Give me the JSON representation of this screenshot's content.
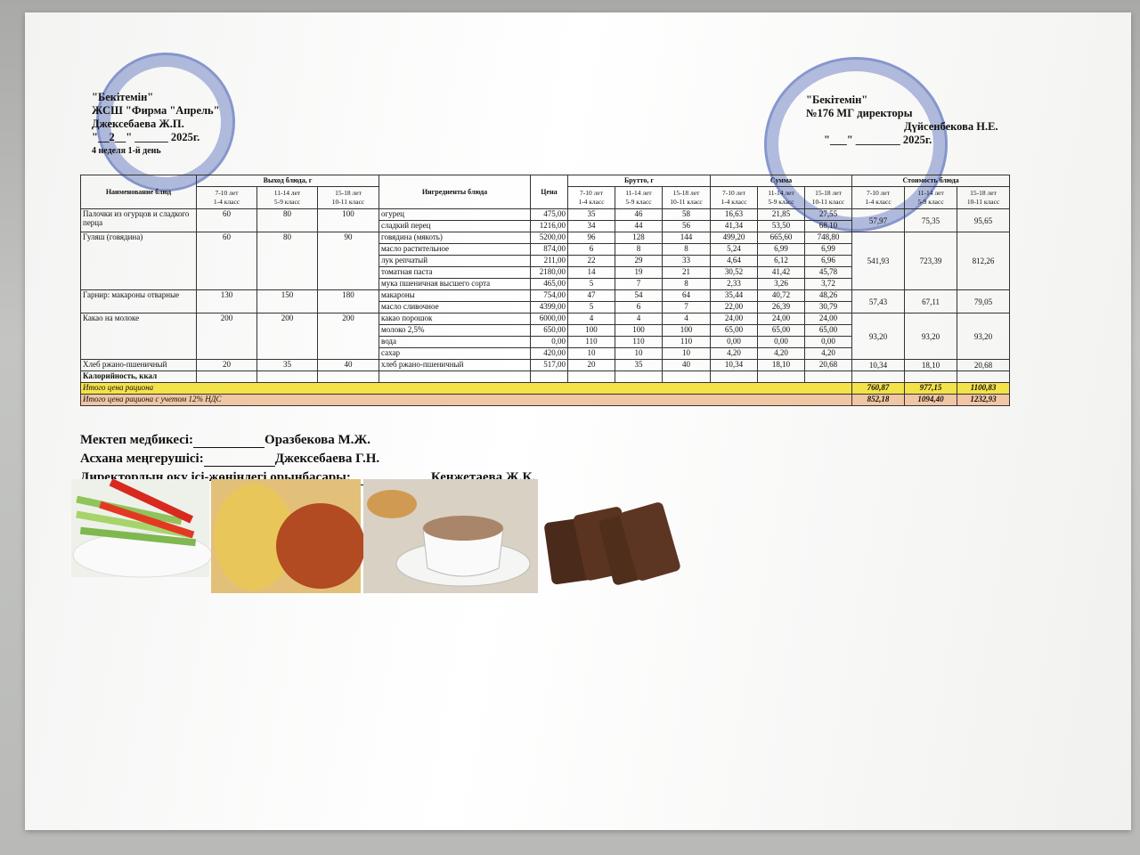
{
  "header_left": {
    "approve": "\"Бекітемін\"",
    "org": "ЖСШ \"Фирма \"Апрель\"",
    "name": "Джексебаева Ж.П.",
    "date": "\"__2__\" ______ 2025г.",
    "day": "4 неделя 1-й день"
  },
  "header_right": {
    "approve": "\"Бекітемін\"",
    "org": "№176 МГ директоры",
    "name": "Дүйсенбекова Н.Е.",
    "date": "\"___\" ________ 2025г."
  },
  "table": {
    "headers": {
      "dish": "Наименование блюд",
      "output": "Выход блюда, г",
      "ingredients": "Ингредиенты блюда",
      "price": "Цена",
      "brutto": "Брутто, г",
      "sum": "Сумма",
      "cost": "Стоимость блюда"
    },
    "age_groups": [
      {
        "age": "7-10 лет",
        "grade": "1-4 класс"
      },
      {
        "age": "11-14 лет",
        "grade": "5-9 класс"
      },
      {
        "age": "15-18 лет",
        "grade": "10-11 класс"
      }
    ],
    "dishes": [
      {
        "name": "Палочки из огурцов и сладкого перца",
        "output": [
          "60",
          "80",
          "100"
        ],
        "cost": [
          "57,97",
          "75,35",
          "95,65"
        ],
        "ingredients": [
          {
            "name": "огурец",
            "price": "475,00",
            "brutto": [
              "35",
              "46",
              "58"
            ],
            "sum": [
              "16,63",
              "21,85",
              "27,55"
            ]
          },
          {
            "name": "сладкий перец",
            "price": "1216,00",
            "brutto": [
              "34",
              "44",
              "56"
            ],
            "sum": [
              "41,34",
              "53,50",
              "68,10"
            ]
          }
        ]
      },
      {
        "name": "Гуляш (говядина)",
        "output": [
          "60",
          "80",
          "90"
        ],
        "cost": [
          "541,93",
          "723,39",
          "812,26"
        ],
        "ingredients": [
          {
            "name": "говядина (мякоть)",
            "price": "5200,00",
            "brutto": [
              "96",
              "128",
              "144"
            ],
            "sum": [
              "499,20",
              "665,60",
              "748,80"
            ]
          },
          {
            "name": "масло растительное",
            "price": "874,00",
            "brutto": [
              "6",
              "8",
              "8"
            ],
            "sum": [
              "5,24",
              "6,99",
              "6,99"
            ]
          },
          {
            "name": "лук репчатый",
            "price": "211,00",
            "brutto": [
              "22",
              "29",
              "33"
            ],
            "sum": [
              "4,64",
              "6,12",
              "6,96"
            ]
          },
          {
            "name": "томатная паста",
            "price": "2180,00",
            "brutto": [
              "14",
              "19",
              "21"
            ],
            "sum": [
              "30,52",
              "41,42",
              "45,78"
            ]
          },
          {
            "name": "мука пшеничная высшего сорта",
            "price": "465,00",
            "brutto": [
              "5",
              "7",
              "8"
            ],
            "sum": [
              "2,33",
              "3,26",
              "3,72"
            ]
          }
        ]
      },
      {
        "name": "Гарнир: макароны отварные",
        "output": [
          "130",
          "150",
          "180"
        ],
        "cost": [
          "57,43",
          "67,11",
          "79,05"
        ],
        "ingredients": [
          {
            "name": "макароны",
            "price": "754,00",
            "brutto": [
              "47",
              "54",
              "64"
            ],
            "sum": [
              "35,44",
              "40,72",
              "48,26"
            ]
          },
          {
            "name": "масло сливочное",
            "price": "4399,00",
            "brutto": [
              "5",
              "6",
              "7"
            ],
            "sum": [
              "22,00",
              "26,39",
              "30,79"
            ]
          }
        ]
      },
      {
        "name": "Какао на молоке",
        "output": [
          "200",
          "200",
          "200"
        ],
        "cost": [
          "93,20",
          "93,20",
          "93,20"
        ],
        "ingredients": [
          {
            "name": "какао порошок",
            "price": "6000,00",
            "brutto": [
              "4",
              "4",
              "4"
            ],
            "sum": [
              "24,00",
              "24,00",
              "24,00"
            ]
          },
          {
            "name": "молоко 2,5%",
            "price": "650,00",
            "brutto": [
              "100",
              "100",
              "100"
            ],
            "sum": [
              "65,00",
              "65,00",
              "65,00"
            ]
          },
          {
            "name": "вода",
            "price": "0,00",
            "brutto": [
              "110",
              "110",
              "110"
            ],
            "sum": [
              "0,00",
              "0,00",
              "0,00"
            ]
          },
          {
            "name": "сахар",
            "price": "420,00",
            "brutto": [
              "10",
              "10",
              "10"
            ],
            "sum": [
              "4,20",
              "4,20",
              "4,20"
            ]
          }
        ]
      },
      {
        "name": "Хлеб ржано-пшеничный",
        "output": [
          "20",
          "35",
          "40"
        ],
        "cost": [
          "10,34",
          "18,10",
          "20,68"
        ],
        "ingredients": [
          {
            "name": "хлеб ржано-пшеничный",
            "price": "517,00",
            "brutto": [
              "20",
              "35",
              "40"
            ],
            "sum": [
              "10,34",
              "18,10",
              "20,68"
            ]
          }
        ]
      }
    ],
    "calories_label": "Калорийность, ккал",
    "total": {
      "label": "Итого цена рациона",
      "values": [
        "760,87",
        "977,15",
        "1100,83"
      ]
    },
    "total_vat": {
      "label": "Итого цена рациона с учетом 12% НДС",
      "values": [
        "852,18",
        "1094,40",
        "1232,93"
      ]
    }
  },
  "signatures": [
    {
      "role": "Мектеп медбикесі:",
      "name": "Оразбекова М.Ж."
    },
    {
      "role": "Асхана меңгерушісі:",
      "name": "Джексебаева Г.Н."
    },
    {
      "role": "Директордың оқу ісі-жөніндегі орынбасары:",
      "name": "Кенжетаева Ж.К."
    }
  ]
}
